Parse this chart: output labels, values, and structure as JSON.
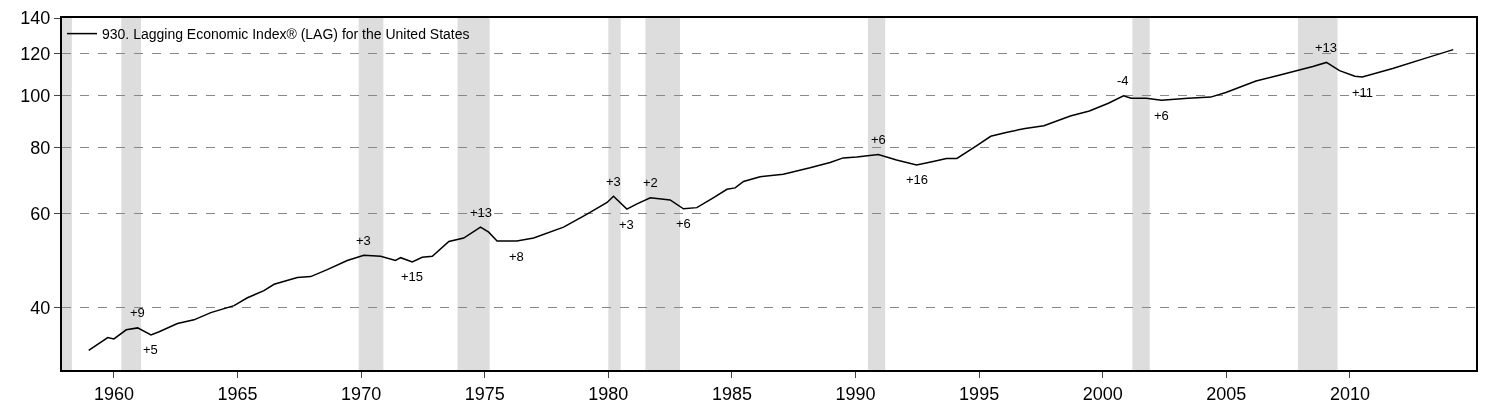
{
  "chart_data": {
    "type": "line",
    "series": [
      {
        "name": "930. Lagging Economic Index® (LAG) for the United States",
        "color": "#000000",
        "x": [
          1958.98,
          1959.75,
          1960.0,
          1960.5,
          1960.96,
          1961.5,
          1961.83,
          1962.57,
          1963.24,
          1963.92,
          1964.86,
          1965.4,
          1966.07,
          1966.48,
          1967.42,
          1967.96,
          1968.63,
          1969.44,
          1970.11,
          1970.79,
          1971.39,
          1971.6,
          1972.07,
          1972.47,
          1972.88,
          1973.55,
          1974.15,
          1974.83,
          1975.16,
          1975.5,
          1976.3,
          1976.98,
          1978.19,
          1979.14,
          1979.95,
          1980.21,
          1980.75,
          1981.16,
          1981.7,
          1982.5,
          1983.04,
          1983.58,
          1984.26,
          1984.8,
          1985.13,
          1985.47,
          1986.14,
          1987.08,
          1988.16,
          1988.97,
          1989.5,
          1990.05,
          1990.92,
          1991.66,
          1992.47,
          1993.14,
          1993.68,
          1994.1,
          1994.86,
          1995.47,
          1996.09,
          1996.86,
          1997.62,
          1998.69,
          1999.46,
          2000.23,
          2000.84,
          2001.15,
          2001.76,
          2002.38,
          2003.45,
          2004.37,
          2004.98,
          2006.2,
          2007.13,
          2008.5,
          2009.05,
          2009.58,
          2010.2,
          2010.5,
          2011.73,
          2013.1,
          2014.18
        ],
        "values": [
          33.2,
          35.1,
          34.9,
          36.3,
          36.6,
          35.5,
          36.0,
          37.3,
          37.9,
          39.1,
          40.3,
          41.7,
          43.0,
          44.2,
          45.5,
          45.7,
          47.1,
          49.0,
          50.1,
          49.9,
          49.0,
          49.6,
          48.7,
          49.7,
          49.9,
          53.2,
          54.0,
          56.6,
          55.4,
          53.3,
          53.3,
          54.0,
          56.6,
          59.9,
          63.0,
          64.7,
          61.2,
          62.6,
          64.3,
          63.7,
          61.3,
          61.6,
          64.3,
          66.7,
          67.1,
          69.0,
          70.4,
          71.2,
          73.2,
          74.9,
          76.4,
          76.7,
          77.5,
          75.7,
          74.1,
          75.2,
          76.2,
          76.2,
          80.3,
          83.9,
          85.3,
          86.8,
          87.8,
          91.6,
          93.6,
          96.8,
          100.0,
          98.9,
          98.9,
          98.1,
          98.9,
          99.4,
          101.4,
          106.6,
          109.3,
          113.5,
          115.5,
          111.5,
          108.8,
          108.4,
          112.5,
          117.8,
          122.1
        ]
      }
    ],
    "xlim": [
      1957.9,
      2015.1
    ],
    "xticks": [
      1960,
      1965,
      1970,
      1975,
      1980,
      1985,
      1990,
      1995,
      2000,
      2005,
      2010
    ],
    "ylim": [
      30.5,
      140
    ],
    "yticks": [
      40,
      60,
      80,
      100,
      120,
      140
    ],
    "log": true,
    "grid": "y",
    "legend": "top left",
    "line_style": "solid",
    "marker": "none",
    "bands": [
      {
        "axis": "x",
        "from": 1957.9,
        "to": 1958.3,
        "color": "#dddddd"
      },
      {
        "axis": "x",
        "from": 1960.3,
        "to": 1961.1,
        "color": "#dddddd"
      },
      {
        "axis": "x",
        "from": 1969.9,
        "to": 1970.9,
        "color": "#dddddd"
      },
      {
        "axis": "x",
        "from": 1973.9,
        "to": 1975.2,
        "color": "#dddddd"
      },
      {
        "axis": "x",
        "from": 1980.0,
        "to": 1980.5,
        "color": "#dddddd"
      },
      {
        "axis": "x",
        "from": 1981.5,
        "to": 1982.9,
        "color": "#dddddd"
      },
      {
        "axis": "x",
        "from": 1990.5,
        "to": 1991.2,
        "color": "#dddddd"
      },
      {
        "axis": "x",
        "from": 2001.2,
        "to": 2001.9,
        "color": "#dddddd"
      },
      {
        "axis": "x",
        "from": 2007.9,
        "to": 2009.5,
        "color": "#dddddd"
      }
    ],
    "annotations": [
      {
        "text": "+9",
        "x": 1960.96,
        "y": 36.6
      },
      {
        "text": "+5",
        "x": 1961.5,
        "y": 35.5
      },
      {
        "text": "+3",
        "x": 1970.11,
        "y": 50.1
      },
      {
        "text": "+15",
        "x": 1972.07,
        "y": 48.7
      },
      {
        "text": "+13",
        "x": 1974.83,
        "y": 56.6
      },
      {
        "text": "+8",
        "x": 1976.3,
        "y": 53.3
      },
      {
        "text": "+3",
        "x": 1980.21,
        "y": 64.7
      },
      {
        "text": "+3",
        "x": 1980.75,
        "y": 61.2
      },
      {
        "text": "+2",
        "x": 1981.7,
        "y": 64.3
      },
      {
        "text": "+6",
        "x": 1983.04,
        "y": 61.3
      },
      {
        "text": "+6",
        "x": 1990.92,
        "y": 77.5
      },
      {
        "text": "+16",
        "x": 1992.47,
        "y": 74.1
      },
      {
        "text": "-4",
        "x": 2000.84,
        "y": 100.0
      },
      {
        "text": "+6",
        "x": 2002.38,
        "y": 98.1
      },
      {
        "text": "+13",
        "x": 2009.05,
        "y": 115.5
      },
      {
        "text": "+11",
        "x": 2010.5,
        "y": 108.4
      }
    ]
  }
}
